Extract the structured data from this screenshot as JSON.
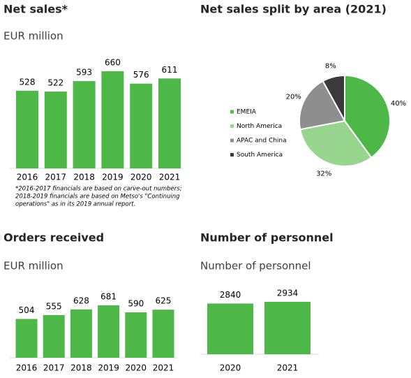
{
  "chart_data": [
    {
      "type": "bar",
      "title": "Net sales*",
      "subtitle": "EUR million",
      "categories": [
        "2016",
        "2017",
        "2018",
        "2019",
        "2020",
        "2021"
      ],
      "values": [
        528,
        522,
        593,
        660,
        576,
        611
      ],
      "color": "#4db848",
      "footnote": [
        "*2016-2017 financials are based on carve-out numbers;",
        "2018-2019 financials are based on Metso's \"Continuing",
        "operations\" as in its 2019 annual report."
      ]
    },
    {
      "type": "pie",
      "title": "Net sales split by area (2021)",
      "categories": [
        "EMEIA",
        "North America",
        "APAC and China",
        "South America"
      ],
      "values": [
        40,
        32,
        20,
        8
      ],
      "value_labels": [
        "40%",
        "32%",
        "20%",
        "8%"
      ],
      "colors": [
        "#4db848",
        "#98d68f",
        "#8e8e8e",
        "#3a3a3a"
      ]
    },
    {
      "type": "bar",
      "title": "Orders received",
      "subtitle": "EUR million",
      "categories": [
        "2016",
        "2017",
        "2018",
        "2019",
        "2020",
        "2021"
      ],
      "values": [
        504,
        555,
        628,
        681,
        590,
        625
      ],
      "color": "#4db848"
    },
    {
      "type": "bar",
      "title": "Number of personnel",
      "subtitle": "Number of personnel",
      "categories": [
        "2020",
        "2021"
      ],
      "values": [
        2840,
        2934
      ],
      "color": "#4db848"
    }
  ]
}
